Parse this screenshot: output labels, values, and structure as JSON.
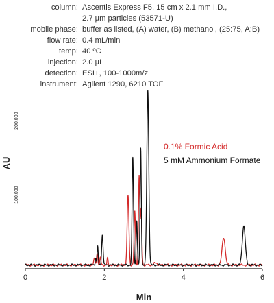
{
  "conditions": [
    {
      "label": "column:",
      "value": "Ascentis Express F5, 15 cm x 2.1 mm I.D.,"
    },
    {
      "label": "",
      "value": "2.7 µm particles (53571-U)"
    },
    {
      "label": "mobile phase:",
      "value": "buffer as listed, (A) water, (B) methanol, (25:75, A:B)"
    },
    {
      "label": "flow rate:",
      "value": "0.4 mL/min"
    },
    {
      "label": "temp:",
      "value": "40 ºC"
    },
    {
      "label": "injection:",
      "value": "2.0 µL"
    },
    {
      "label": "detection:",
      "value": "ESI+, 100-1000m/z"
    },
    {
      "label": "instrument:",
      "value": "Agilent 1290, 6210 TOF"
    }
  ],
  "chart_data": {
    "type": "line",
    "xlabel": "Min",
    "ylabel": "AU",
    "xlim": [
      0,
      6
    ],
    "ylim": [
      0,
      240000
    ],
    "x_ticks": [
      0,
      2,
      4,
      6
    ],
    "y_ticks": [
      100000,
      200000
    ],
    "y_tick_labels": [
      "100,000",
      "200,000"
    ],
    "grid": false,
    "legend_position": "right-middle",
    "baseline": 5000,
    "series": [
      {
        "name": "0.1% Formic Acid",
        "color": "#d42a2a",
        "peaks": [
          {
            "t": 1.75,
            "h": 8000,
            "w": 0.02
          },
          {
            "t": 1.82,
            "h": 16000,
            "w": 0.016
          },
          {
            "t": 1.9,
            "h": 10000,
            "w": 0.014
          },
          {
            "t": 2.08,
            "h": 9000,
            "w": 0.013
          },
          {
            "t": 2.6,
            "h": 94000,
            "w": 0.022
          },
          {
            "t": 2.77,
            "h": 72000,
            "w": 0.018
          },
          {
            "t": 2.88,
            "h": 120000,
            "w": 0.016
          },
          {
            "t": 2.93,
            "h": 75000,
            "w": 0.018
          },
          {
            "t": 3.3,
            "h": 3000,
            "w": 0.04
          },
          {
            "t": 5.02,
            "h": 37000,
            "w": 0.04
          }
        ]
      },
      {
        "name": "5 mM Ammonium Formate",
        "color": "#111111",
        "peaks": [
          {
            "t": 1.78,
            "h": 10000,
            "w": 0.012
          },
          {
            "t": 1.83,
            "h": 26000,
            "w": 0.014
          },
          {
            "t": 1.95,
            "h": 41000,
            "w": 0.018
          },
          {
            "t": 2.72,
            "h": 145000,
            "w": 0.018
          },
          {
            "t": 2.82,
            "h": 60000,
            "w": 0.015
          },
          {
            "t": 2.92,
            "h": 158000,
            "w": 0.016
          },
          {
            "t": 3.1,
            "h": 236000,
            "w": 0.025
          },
          {
            "t": 5.53,
            "h": 53000,
            "w": 0.038
          }
        ]
      }
    ]
  }
}
